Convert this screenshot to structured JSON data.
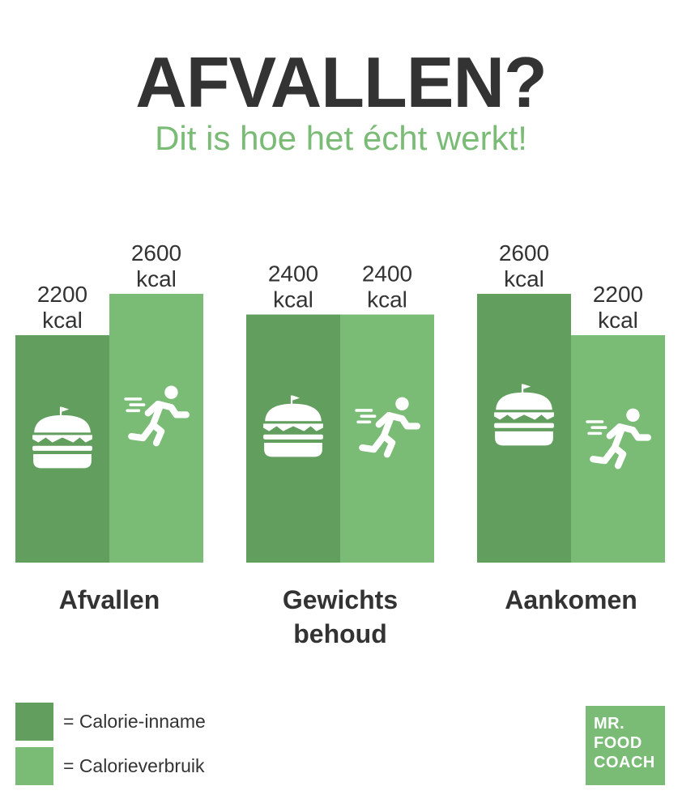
{
  "header": {
    "title": "AFVALLEN?",
    "subtitle": "Dit is hoe het écht werkt!"
  },
  "legend": [
    {
      "label": "= Calorie-inname",
      "color": "#629e5d"
    },
    {
      "label": "= Calorieverbruik",
      "color": "#7abb76"
    }
  ],
  "logo": {
    "lines": [
      "MR.",
      "FOOD",
      "COACH"
    ]
  },
  "colors": {
    "dark_green": "#629e5d",
    "light_green": "#7abb76",
    "text": "#333333",
    "subtitle": "#7abb76"
  },
  "chart_data": {
    "type": "bar",
    "title": "AFVALLEN?",
    "subtitle": "Dit is hoe het écht werkt!",
    "unit": "kcal",
    "categories": [
      {
        "lines": [
          "Afvallen"
        ]
      },
      {
        "lines": [
          "Gewichts",
          "behoud"
        ]
      },
      {
        "lines": [
          "Aankomen"
        ]
      }
    ],
    "series": [
      {
        "name": "Calorie-inname",
        "color": "#629e5d",
        "icon": "burger-icon",
        "values": [
          2200,
          2400,
          2600
        ]
      },
      {
        "name": "Calorieverbruik",
        "color": "#7abb76",
        "icon": "runner-icon",
        "values": [
          2600,
          2400,
          2200
        ]
      }
    ],
    "data_labels": true,
    "ylim": [
      0,
      2600
    ],
    "grid": false,
    "legend_position": "bottom-left"
  }
}
